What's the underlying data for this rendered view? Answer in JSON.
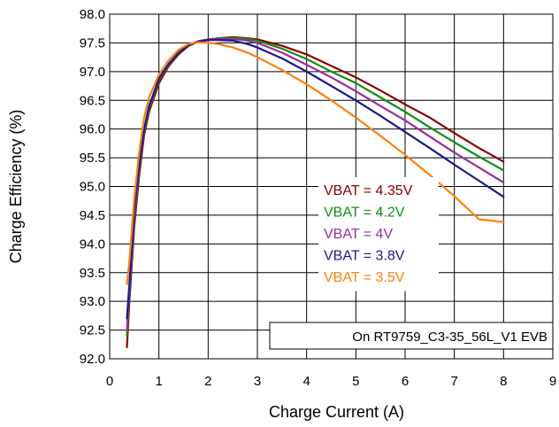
{
  "chart_data": {
    "type": "line",
    "xlabel": "Charge Current (A)",
    "ylabel": "Charge Efficiency (%)",
    "xlim": [
      0,
      9
    ],
    "ylim": [
      92.0,
      98.0
    ],
    "xticks": [
      "0",
      "1",
      "2",
      "3",
      "4",
      "5",
      "6",
      "7",
      "8",
      "9"
    ],
    "yticks": [
      "92.0",
      "92.5",
      "93.0",
      "93.5",
      "94.0",
      "94.5",
      "95.0",
      "95.5",
      "96.0",
      "96.5",
      "97.0",
      "97.5",
      "98.0"
    ],
    "grid": true,
    "legend_position": "center-right",
    "annotation": "On RT9759_C3-35_56L_V1 EVB",
    "series": [
      {
        "name": "VBAT = 4.35V",
        "color": "#8b0000",
        "x": [
          0.35,
          0.4,
          0.5,
          0.6,
          0.7,
          0.8,
          1.0,
          1.2,
          1.4,
          1.6,
          1.8,
          2.0,
          2.2,
          2.5,
          2.8,
          3.0,
          3.5,
          4.0,
          4.5,
          5.0,
          5.5,
          6.0,
          6.5,
          7.0,
          7.5,
          8.0
        ],
        "y": [
          92.2,
          93.0,
          94.3,
          95.2,
          95.9,
          96.3,
          96.8,
          97.1,
          97.3,
          97.45,
          97.52,
          97.55,
          97.58,
          97.6,
          97.58,
          97.56,
          97.45,
          97.3,
          97.1,
          96.9,
          96.67,
          96.43,
          96.2,
          95.93,
          95.67,
          95.43
        ]
      },
      {
        "name": "VBAT = 4.2V",
        "color": "#118c11",
        "x": [
          0.35,
          0.4,
          0.5,
          0.6,
          0.7,
          0.8,
          1.0,
          1.2,
          1.4,
          1.6,
          1.8,
          2.0,
          2.2,
          2.5,
          2.8,
          3.0,
          3.5,
          4.0,
          4.5,
          5.0,
          5.5,
          6.0,
          6.5,
          7.0,
          7.5,
          8.0
        ],
        "y": [
          92.4,
          93.1,
          94.4,
          95.3,
          95.95,
          96.35,
          96.85,
          97.12,
          97.32,
          97.46,
          97.53,
          97.56,
          97.58,
          97.59,
          97.57,
          97.54,
          97.4,
          97.22,
          97.0,
          96.8,
          96.55,
          96.3,
          96.03,
          95.77,
          95.52,
          95.28
        ]
      },
      {
        "name": "VBAT = 4V",
        "color": "#9b2c9b",
        "x": [
          0.35,
          0.4,
          0.5,
          0.6,
          0.7,
          0.8,
          1.0,
          1.2,
          1.4,
          1.6,
          1.8,
          2.0,
          2.2,
          2.5,
          2.8,
          3.0,
          3.5,
          4.0,
          4.5,
          5.0,
          5.5,
          6.0,
          6.5,
          7.0,
          7.5,
          8.0
        ],
        "y": [
          92.5,
          93.2,
          94.5,
          95.35,
          95.98,
          96.38,
          96.87,
          97.13,
          97.33,
          97.46,
          97.53,
          97.56,
          97.57,
          97.57,
          97.54,
          97.5,
          97.33,
          97.12,
          96.9,
          96.66,
          96.4,
          96.15,
          95.87,
          95.59,
          95.33,
          95.07
        ]
      },
      {
        "name": "VBAT = 3.8V",
        "color": "#1a1a8c",
        "x": [
          0.35,
          0.4,
          0.5,
          0.6,
          0.7,
          0.8,
          1.0,
          1.2,
          1.4,
          1.6,
          1.8,
          2.0,
          2.2,
          2.5,
          2.8,
          3.0,
          3.5,
          4.0,
          4.5,
          5.0,
          5.5,
          6.0,
          6.5,
          7.0,
          7.5,
          8.0
        ],
        "y": [
          92.7,
          93.3,
          94.6,
          95.4,
          96.0,
          96.4,
          96.88,
          97.14,
          97.33,
          97.46,
          97.52,
          97.55,
          97.55,
          97.54,
          97.48,
          97.42,
          97.23,
          97.0,
          96.75,
          96.5,
          96.23,
          95.95,
          95.67,
          95.38,
          95.1,
          94.82
        ]
      },
      {
        "name": "VBAT = 3.5V",
        "color": "#ff7f0e",
        "x": [
          0.35,
          0.4,
          0.5,
          0.6,
          0.7,
          0.8,
          1.0,
          1.2,
          1.4,
          1.6,
          1.8,
          2.0,
          2.2,
          2.5,
          2.8,
          3.0,
          3.5,
          4.0,
          4.5,
          5.0,
          5.5,
          6.0,
          6.5,
          7.0,
          7.5,
          8.0
        ],
        "y": [
          93.3,
          93.7,
          94.8,
          95.6,
          96.2,
          96.55,
          96.95,
          97.2,
          97.38,
          97.48,
          97.51,
          97.5,
          97.48,
          97.42,
          97.33,
          97.25,
          97.03,
          96.78,
          96.5,
          96.2,
          95.88,
          95.55,
          95.2,
          94.83,
          94.43,
          94.38
        ]
      }
    ]
  }
}
